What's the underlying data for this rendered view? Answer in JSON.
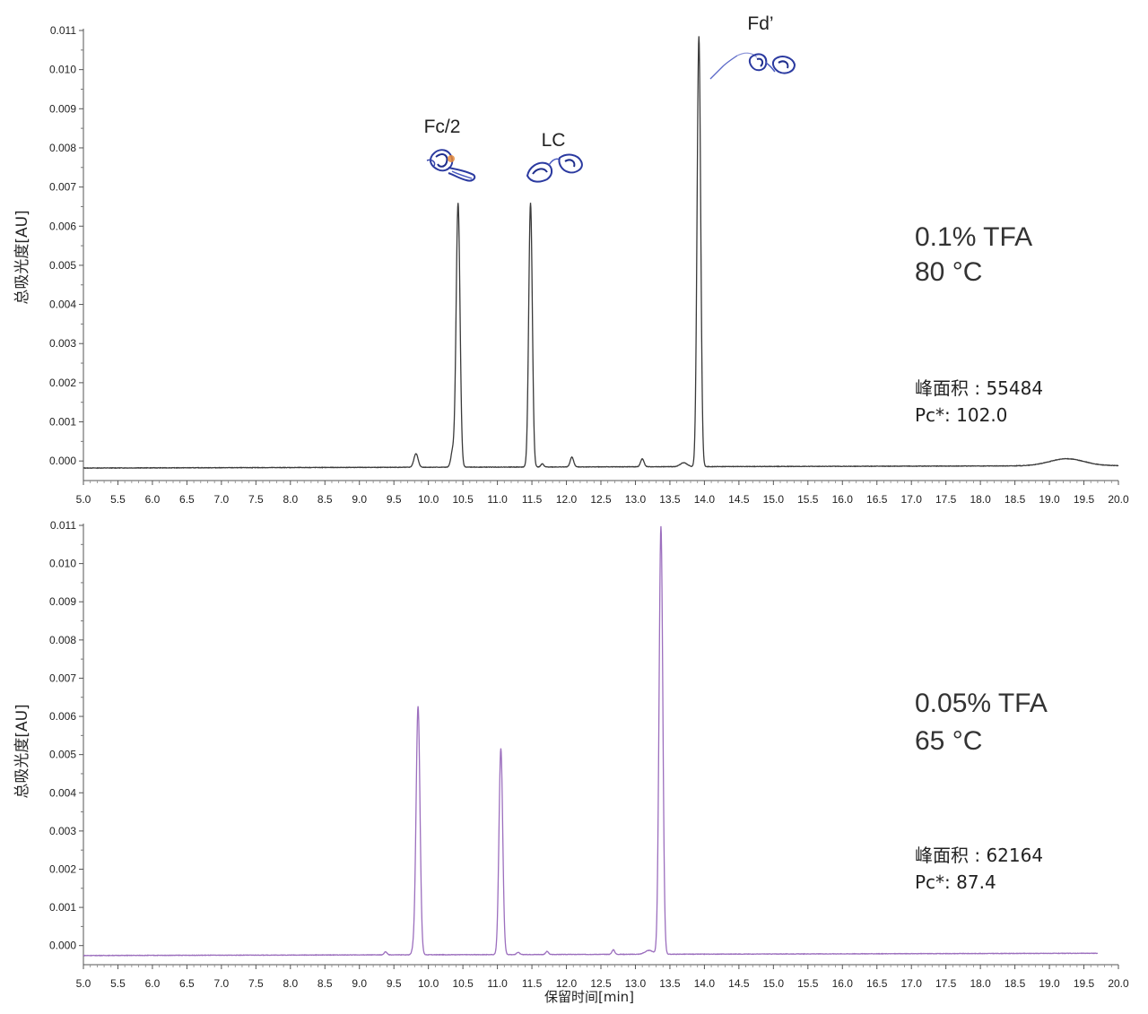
{
  "chart_data": [
    {
      "type": "line",
      "id": "top",
      "ylabel": "总吸光度[AU]",
      "xlabel": "",
      "xlim": [
        5.0,
        20.0
      ],
      "ylim": [
        -0.0005,
        0.011
      ],
      "x_ticks": [
        "5.0",
        "5.5",
        "6.0",
        "6.5",
        "7.0",
        "7.5",
        "8.0",
        "8.5",
        "9.0",
        "9.5",
        "10.0",
        "10.5",
        "11.0",
        "11.5",
        "12.0",
        "12.5",
        "13.0",
        "13.5",
        "14.0",
        "14.5",
        "15.0",
        "15.5",
        "16.0",
        "16.5",
        "17.0",
        "17.5",
        "18.0",
        "18.5",
        "19.0",
        "19.5",
        "20.0"
      ],
      "y_ticks": [
        "0.000",
        "0.001",
        "0.002",
        "0.003",
        "0.004",
        "0.005",
        "0.006",
        "0.007",
        "0.008",
        "0.009",
        "0.010",
        "0.011"
      ],
      "line_color": "#3a3a3a",
      "baseline": -0.00018,
      "peaks": [
        {
          "rt": 9.82,
          "height": 0.00035,
          "width": 0.03
        },
        {
          "rt": 10.35,
          "height": 0.0004,
          "width": 0.025
        },
        {
          "rt": 10.43,
          "height": 0.00675,
          "width": 0.028
        },
        {
          "rt": 11.48,
          "height": 0.00675,
          "width": 0.026
        },
        {
          "rt": 11.65,
          "height": 8e-05,
          "width": 0.02
        },
        {
          "rt": 12.08,
          "height": 0.00025,
          "width": 0.025
        },
        {
          "rt": 13.1,
          "height": 0.0002,
          "width": 0.025
        },
        {
          "rt": 13.7,
          "height": 0.0001,
          "width": 0.05
        },
        {
          "rt": 13.92,
          "height": 0.011,
          "width": 0.026
        },
        {
          "rt": 19.25,
          "height": 0.00018,
          "width": 0.25
        }
      ],
      "peak_labels": [
        {
          "text": "Fc/2",
          "rt": 10.43
        },
        {
          "text": "LC",
          "rt": 11.48
        },
        {
          "text": "Fd’",
          "rt": 13.92
        }
      ],
      "condition": [
        "0.1% TFA",
        "80 °C"
      ],
      "stats": [
        "峰面积 : 55484",
        "Pc*: 102.0"
      ]
    },
    {
      "type": "line",
      "id": "bottom",
      "ylabel": "总吸光度[AU]",
      "xlabel": "保留时间[min]",
      "xlim": [
        5.0,
        20.0
      ],
      "ylim": [
        -0.0005,
        0.011
      ],
      "x_ticks": [
        "5.0",
        "5.5",
        "6.0",
        "6.5",
        "7.0",
        "7.5",
        "8.0",
        "8.5",
        "9.0",
        "9.5",
        "10.0",
        "10.5",
        "11.0",
        "11.5",
        "12.0",
        "12.5",
        "13.0",
        "13.5",
        "14.0",
        "14.5",
        "15.0",
        "15.5",
        "16.0",
        "16.5",
        "17.0",
        "17.5",
        "18.0",
        "18.5",
        "19.0",
        "19.5",
        "20.0"
      ],
      "y_ticks": [
        "0.000",
        "0.001",
        "0.002",
        "0.003",
        "0.004",
        "0.005",
        "0.006",
        "0.007",
        "0.008",
        "0.009",
        "0.010",
        "0.011"
      ],
      "line_color": "#9c6fbe",
      "baseline": -0.00026,
      "x_end": 19.7,
      "peaks": [
        {
          "rt": 9.38,
          "height": 8e-05,
          "width": 0.02
        },
        {
          "rt": 9.79,
          "height": 0.00018,
          "width": 0.025
        },
        {
          "rt": 9.85,
          "height": 0.0065,
          "width": 0.028
        },
        {
          "rt": 11.05,
          "height": 0.0054,
          "width": 0.027
        },
        {
          "rt": 11.3,
          "height": 6e-05,
          "width": 0.02
        },
        {
          "rt": 11.72,
          "height": 8e-05,
          "width": 0.02
        },
        {
          "rt": 12.68,
          "height": 0.00012,
          "width": 0.02
        },
        {
          "rt": 13.2,
          "height": 0.0001,
          "width": 0.06
        },
        {
          "rt": 13.37,
          "height": 0.0112,
          "width": 0.027
        }
      ],
      "peak_labels": [],
      "condition": [
        "0.05% TFA",
        "65 °C"
      ],
      "stats": [
        "峰面积 : 62164",
        "Pc*: 87.4"
      ]
    }
  ]
}
